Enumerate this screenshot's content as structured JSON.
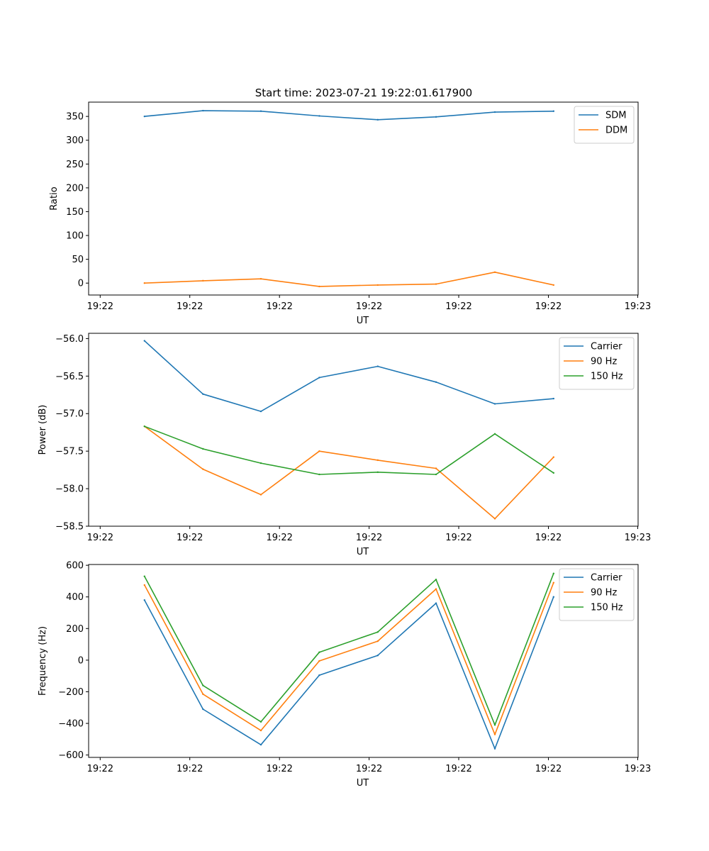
{
  "figure": {
    "title": "Start time: 2023-07-21 19:22:01.617900"
  },
  "chart_data": [
    {
      "type": "line",
      "xlabel": "UT",
      "ylabel": "Ratio",
      "x_ticks": [
        "19:22",
        "19:22",
        "19:22",
        "19:22",
        "19:22",
        "19:22",
        "19:23"
      ],
      "ylim": [
        -25,
        380
      ],
      "y_ticks": [
        0,
        50,
        100,
        150,
        200,
        250,
        300,
        350
      ],
      "grid": false,
      "legend_position": "top-right",
      "series": [
        {
          "name": "SDM",
          "color": "#1f77b4",
          "values": [
            350,
            362,
            361,
            351,
            343,
            349,
            359,
            361
          ]
        },
        {
          "name": "DDM",
          "color": "#ff7f0e",
          "values": [
            0,
            5,
            9,
            -7,
            -4,
            -2,
            23,
            -4
          ]
        }
      ]
    },
    {
      "type": "line",
      "xlabel": "UT",
      "ylabel": "Power (dB)",
      "x_ticks": [
        "19:22",
        "19:22",
        "19:22",
        "19:22",
        "19:22",
        "19:22",
        "19:23"
      ],
      "ylim": [
        -58.5,
        -55.93
      ],
      "y_ticks": [
        -58.5,
        -58.0,
        -57.5,
        -57.0,
        -56.5,
        -56.0
      ],
      "grid": false,
      "legend_position": "top-right",
      "series": [
        {
          "name": "Carrier",
          "color": "#1f77b4",
          "values": [
            -56.03,
            -56.74,
            -56.97,
            -56.52,
            -56.37,
            -56.58,
            -56.87,
            -56.8
          ]
        },
        {
          "name": "90 Hz",
          "color": "#ff7f0e",
          "values": [
            -57.17,
            -57.74,
            -58.08,
            -57.5,
            -57.62,
            -57.73,
            -58.4,
            -57.58
          ]
        },
        {
          "name": "150 Hz",
          "color": "#2ca02c",
          "values": [
            -57.17,
            -57.47,
            -57.66,
            -57.81,
            -57.78,
            -57.81,
            -57.27,
            -57.79
          ]
        }
      ]
    },
    {
      "type": "line",
      "xlabel": "UT",
      "ylabel": "Frequency (Hz)",
      "x_ticks": [
        "19:22",
        "19:22",
        "19:22",
        "19:22",
        "19:22",
        "19:22",
        "19:23"
      ],
      "ylim": [
        -615,
        605
      ],
      "y_ticks": [
        -600,
        -400,
        -200,
        0,
        200,
        400,
        600
      ],
      "grid": false,
      "legend_position": "top-right",
      "series": [
        {
          "name": "Carrier",
          "color": "#1f77b4",
          "values": [
            380,
            -310,
            -535,
            -95,
            30,
            360,
            -560,
            400
          ]
        },
        {
          "name": "90 Hz",
          "color": "#ff7f0e",
          "values": [
            475,
            -215,
            -445,
            -5,
            120,
            450,
            -470,
            490
          ]
        },
        {
          "name": "150 Hz",
          "color": "#2ca02c",
          "values": [
            530,
            -160,
            -390,
            50,
            178,
            510,
            -410,
            548
          ]
        }
      ]
    }
  ]
}
